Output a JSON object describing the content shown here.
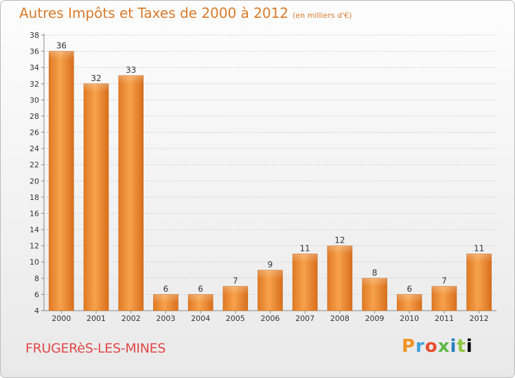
{
  "title": "Autres Impôts et Taxes de 2000 à 2012",
  "unit_label": "(en milliers d'€)",
  "commune": "FRUGERèS-LES-MINES",
  "logo_text": "Proxiti",
  "colors": {
    "bar_light": "#f7a24c",
    "bar_dark": "#d5721f",
    "title": "#d97a2a",
    "commune": "#e14848",
    "grid": "#cfcfcf",
    "axis": "#888888"
  },
  "chart_data": {
    "type": "bar",
    "title": "Autres Impôts et Taxes de 2000 à 2012",
    "ylabel": "",
    "xlabel": "",
    "categories": [
      "2000",
      "2001",
      "2002",
      "2003",
      "2004",
      "2005",
      "2006",
      "2007",
      "2008",
      "2009",
      "2010",
      "2011",
      "2012"
    ],
    "values": [
      36,
      32,
      33,
      6,
      6,
      7,
      9,
      11,
      12,
      8,
      6,
      7,
      11
    ],
    "ylim": [
      4,
      38
    ],
    "yticks": [
      4,
      6,
      8,
      10,
      12,
      14,
      16,
      18,
      20,
      22,
      24,
      26,
      28,
      30,
      32,
      34,
      36,
      38
    ],
    "grid": true,
    "legend": "none"
  }
}
